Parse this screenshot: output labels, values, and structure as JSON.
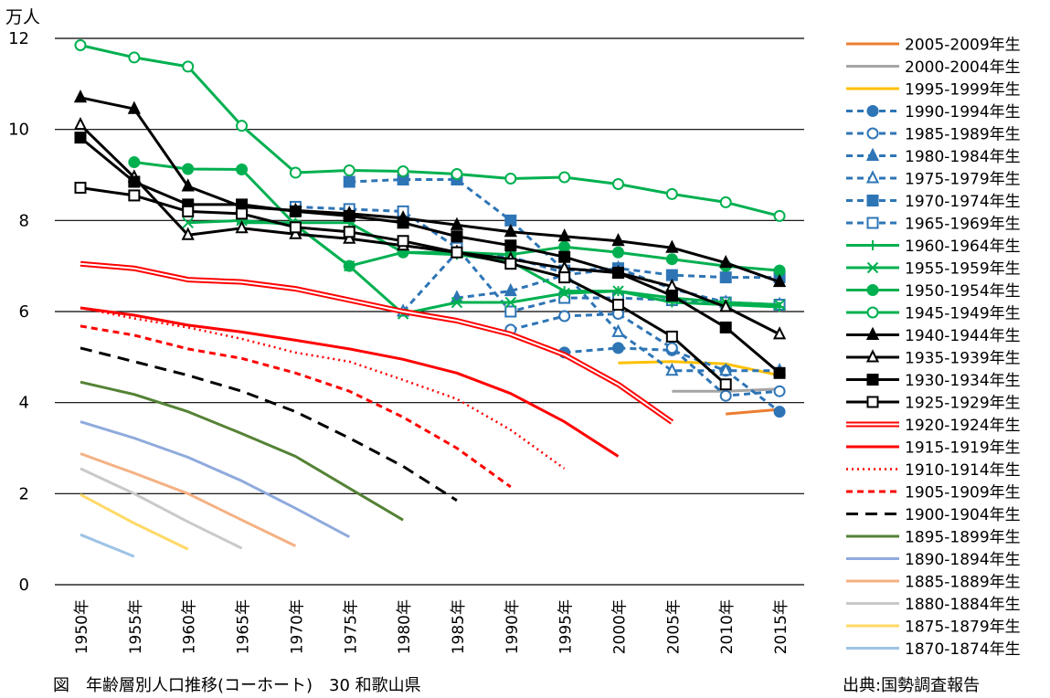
{
  "page": {
    "unit_label": "万人",
    "caption": "図　年齢層別人口推移(コーホート)　30 和歌山県",
    "source": "出典:国勢調査報告"
  },
  "chart_data": {
    "type": "line",
    "title": "",
    "xlabel": "",
    "ylabel": "万人",
    "ylim": [
      0,
      12
    ],
    "yticks": [
      0,
      2,
      4,
      6,
      8,
      10,
      12
    ],
    "x_categories": [
      "1950年",
      "1955年",
      "1960年",
      "1965年",
      "1970年",
      "1975年",
      "1980年",
      "1985年",
      "1990年",
      "1995年",
      "2000年",
      "2005年",
      "2010年",
      "2015年"
    ],
    "grid": "horizontal",
    "legend_position": "right",
    "series": [
      {
        "name": "2005-2009年生",
        "color": "#ED7D31",
        "dash": "solid",
        "marker": "none",
        "start": 12,
        "values": [
          3.75,
          3.85
        ]
      },
      {
        "name": "2000-2004年生",
        "color": "#A5A5A5",
        "dash": "solid",
        "marker": "none",
        "start": 11,
        "values": [
          4.25,
          4.25,
          4.3
        ]
      },
      {
        "name": "1995-1999年生",
        "color": "#FFC000",
        "dash": "solid",
        "marker": "none",
        "start": 10,
        "values": [
          4.87,
          4.9,
          4.85,
          4.6
        ]
      },
      {
        "name": "1990-1994年生",
        "color": "#2E75B6",
        "dash": "dashed",
        "marker": "circle",
        "start": 9,
        "values": [
          5.1,
          5.2,
          5.15,
          4.7,
          3.8
        ]
      },
      {
        "name": "1985-1989年生",
        "color": "#2E75B6",
        "dash": "dashed",
        "marker": "circle-open",
        "start": 8,
        "values": [
          5.6,
          5.9,
          5.95,
          5.2,
          4.15,
          4.25
        ]
      },
      {
        "name": "1980-1984年生",
        "color": "#2E75B6",
        "dash": "dashed",
        "marker": "triangle",
        "start": 7,
        "values": [
          6.3,
          6.45,
          6.8,
          6.95,
          6.5,
          6.2,
          6.15
        ]
      },
      {
        "name": "1975-1979年生",
        "color": "#2E75B6",
        "dash": "dashed",
        "marker": "triangle-open",
        "start": 6,
        "values": [
          6.0,
          7.3,
          7.2,
          6.85,
          5.55,
          4.7,
          4.7,
          4.7
        ]
      },
      {
        "name": "1970-1974年生",
        "color": "#2E75B6",
        "dash": "dashed",
        "marker": "square",
        "start": 5,
        "values": [
          8.85,
          8.9,
          8.9,
          8.0,
          6.9,
          6.95,
          6.8,
          6.75,
          6.75
        ]
      },
      {
        "name": "1965-1969年生",
        "color": "#2E75B6",
        "dash": "dashed",
        "marker": "square-open",
        "start": 4,
        "values": [
          8.3,
          8.25,
          8.2,
          7.4,
          6.0,
          6.3,
          6.3,
          6.25,
          6.2,
          6.15
        ]
      },
      {
        "name": "1960-1964年生",
        "color": "#00B050",
        "dash": "solid",
        "marker": "plus",
        "start": 3,
        "values": [
          7.95,
          7.95,
          7.95,
          7.3,
          7.25,
          7.1,
          6.45,
          6.45,
          6.2,
          6.15,
          6.1
        ]
      },
      {
        "name": "1955-1959年生",
        "color": "#00B050",
        "dash": "solid",
        "marker": "x",
        "start": 2,
        "values": [
          7.95,
          8.0,
          7.9,
          7.0,
          5.95,
          6.2,
          6.2,
          6.4,
          6.45,
          6.3,
          6.2,
          6.15
        ]
      },
      {
        "name": "1950-1954年生",
        "color": "#00B050",
        "dash": "solid",
        "marker": "circle",
        "start": 1,
        "values": [
          9.28,
          9.13,
          9.12,
          7.9,
          7.0,
          7.3,
          7.3,
          7.25,
          7.42,
          7.3,
          7.15,
          7.0,
          6.9
        ]
      },
      {
        "name": "1945-1949年生",
        "color": "#00B050",
        "dash": "solid",
        "marker": "circle-open",
        "start": 0,
        "values": [
          11.85,
          11.58,
          11.38,
          10.08,
          9.05,
          9.1,
          9.08,
          9.02,
          8.92,
          8.95,
          8.8,
          8.58,
          8.4,
          8.1
        ]
      },
      {
        "name": "1940-1944年生",
        "color": "#000000",
        "dash": "solid",
        "marker": "triangle",
        "start": 0,
        "values": [
          10.7,
          10.45,
          8.75,
          8.3,
          8.22,
          8.15,
          8.05,
          7.9,
          7.75,
          7.65,
          7.55,
          7.4,
          7.07,
          6.65
        ]
      },
      {
        "name": "1935-1939年生",
        "color": "#000000",
        "dash": "solid",
        "marker": "triangle-open",
        "start": 0,
        "values": [
          10.1,
          8.95,
          7.68,
          7.83,
          7.7,
          7.6,
          7.45,
          7.3,
          7.15,
          6.95,
          6.85,
          6.55,
          6.1,
          5.5
        ]
      },
      {
        "name": "1930-1934年生",
        "color": "#000000",
        "dash": "solid",
        "marker": "square",
        "start": 0,
        "values": [
          9.82,
          8.85,
          8.35,
          8.35,
          8.2,
          8.1,
          7.95,
          7.65,
          7.45,
          7.2,
          6.85,
          6.35,
          5.65,
          4.65
        ]
      },
      {
        "name": "1925-1929年生",
        "color": "#000000",
        "dash": "solid",
        "marker": "square-open",
        "start": 0,
        "values": [
          8.72,
          8.55,
          8.2,
          8.15,
          7.85,
          7.75,
          7.55,
          7.3,
          7.05,
          6.75,
          6.15,
          5.45,
          4.4
        ]
      },
      {
        "name": "1920-1924年生",
        "color": "#FF0000",
        "dash": "double",
        "marker": "none",
        "start": 0,
        "values": [
          7.05,
          6.95,
          6.7,
          6.65,
          6.5,
          6.25,
          6.0,
          5.8,
          5.5,
          5.05,
          4.4,
          3.57
        ]
      },
      {
        "name": "1915-1919年生",
        "color": "#FF0000",
        "dash": "solid",
        "marker": "none",
        "start": 0,
        "values": [
          6.08,
          5.92,
          5.7,
          5.55,
          5.37,
          5.18,
          4.95,
          4.65,
          4.2,
          3.58,
          2.82
        ]
      },
      {
        "name": "1910-1914年生",
        "color": "#FF0000",
        "dash": "dotted",
        "marker": "none",
        "start": 0,
        "values": [
          6.08,
          5.85,
          5.65,
          5.4,
          5.1,
          4.9,
          4.5,
          4.08,
          3.4,
          2.55
        ]
      },
      {
        "name": "1905-1909年生",
        "color": "#FF0000",
        "dash": "dashed",
        "marker": "none",
        "start": 0,
        "values": [
          5.68,
          5.48,
          5.18,
          4.97,
          4.65,
          4.25,
          3.68,
          3.0,
          2.15
        ]
      },
      {
        "name": "1900-1904年生",
        "color": "#000000",
        "dash": "longdash",
        "marker": "none",
        "start": 0,
        "values": [
          5.2,
          4.9,
          4.6,
          4.25,
          3.8,
          3.22,
          2.6,
          1.85
        ]
      },
      {
        "name": "1895-1899年生",
        "color": "#548235",
        "dash": "solid",
        "marker": "none",
        "start": 0,
        "values": [
          4.45,
          4.18,
          3.8,
          3.32,
          2.82,
          2.12,
          1.42
        ]
      },
      {
        "name": "1890-1894年生",
        "color": "#8FAADC",
        "dash": "solid",
        "marker": "none",
        "start": 0,
        "values": [
          3.58,
          3.22,
          2.8,
          2.28,
          1.68,
          1.05
        ]
      },
      {
        "name": "1885-1889年生",
        "color": "#F4B183",
        "dash": "solid",
        "marker": "none",
        "start": 0,
        "values": [
          2.88,
          2.45,
          2.0,
          1.42,
          0.85
        ]
      },
      {
        "name": "1880-1884年生",
        "color": "#C9C9C9",
        "dash": "solid",
        "marker": "none",
        "start": 0,
        "values": [
          2.55,
          2.0,
          1.38,
          0.8
        ]
      },
      {
        "name": "1875-1879年生",
        "color": "#FFD966",
        "dash": "solid",
        "marker": "none",
        "start": 0,
        "values": [
          1.98,
          1.35,
          0.78
        ]
      },
      {
        "name": "1870-1874年生",
        "color": "#9DC3E6",
        "dash": "solid",
        "marker": "none",
        "start": 0,
        "values": [
          1.1,
          0.62
        ]
      }
    ]
  }
}
